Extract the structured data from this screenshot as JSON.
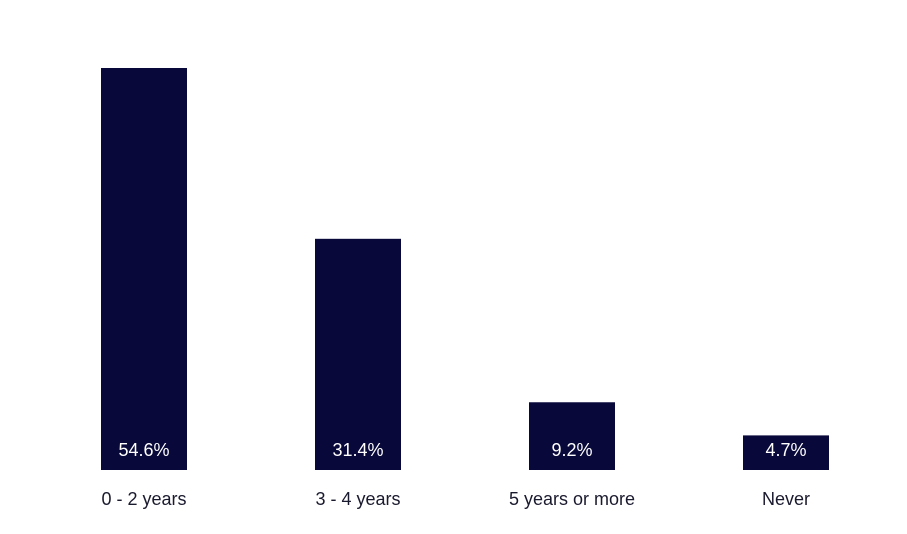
{
  "chart_data": {
    "type": "bar",
    "categories": [
      "0 - 2 years",
      "3 - 4 years",
      "5 years or more",
      "Never"
    ],
    "values": [
      54.6,
      31.4,
      9.2,
      4.7
    ],
    "value_labels": [
      "54.6%",
      "31.4%",
      "9.2%",
      "4.7%"
    ],
    "title": "",
    "xlabel": "",
    "ylabel": "",
    "ylim": [
      0,
      54.6
    ],
    "grid": false,
    "legend": "none",
    "bar_color": "#08083a"
  }
}
